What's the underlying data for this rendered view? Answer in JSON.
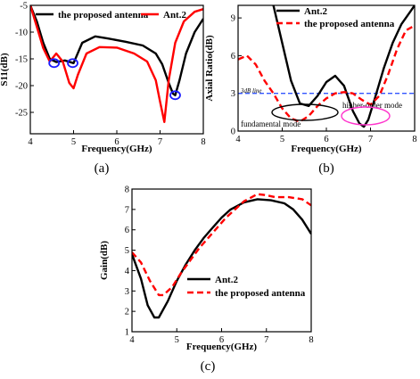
{
  "chart_data": [
    {
      "type": "line",
      "caption": "(a)",
      "xlabel": "Frequency(GHz)",
      "ylabel": "S11(dB)",
      "xlim": [
        4,
        8
      ],
      "ylim": [
        -29,
        -5
      ],
      "xticks": [
        4,
        5,
        6,
        7,
        8
      ],
      "yticks": [
        -5,
        -10,
        -15,
        -20,
        -25
      ],
      "legend_position": "top",
      "series": [
        {
          "name": "the proposed antenna",
          "color": "#000000",
          "style": "solid",
          "x": [
            4.0,
            4.15,
            4.3,
            4.45,
            4.6,
            4.8,
            5.0,
            5.2,
            5.5,
            5.8,
            6.2,
            6.6,
            6.9,
            7.05,
            7.2,
            7.3,
            7.35,
            7.45,
            7.6,
            7.8,
            8.0
          ],
          "y": [
            -5,
            -8,
            -12,
            -15,
            -15.6,
            -15.3,
            -15.8,
            -12,
            -10.8,
            -11.2,
            -11.8,
            -12.5,
            -14,
            -16,
            -19.5,
            -21.5,
            -21.8,
            -19,
            -14,
            -10,
            -7.5
          ]
        },
        {
          "name": "Ant.2",
          "color": "#ff0000",
          "style": "solid",
          "x": [
            4.0,
            4.15,
            4.3,
            4.45,
            4.6,
            4.75,
            4.9,
            5.0,
            5.1,
            5.3,
            5.6,
            6.0,
            6.4,
            6.7,
            6.9,
            7.0,
            7.1,
            7.2,
            7.35,
            7.55,
            7.8,
            8.0
          ],
          "y": [
            -5,
            -9,
            -13,
            -15.5,
            -14,
            -15.5,
            -19.5,
            -20.5,
            -18,
            -14,
            -12.8,
            -12.9,
            -14,
            -15.5,
            -19,
            -23,
            -26.8,
            -19,
            -12,
            -8,
            -6.2,
            -5.7
          ]
        }
      ],
      "markers": [
        {
          "x": 4.55,
          "y": -15.8
        },
        {
          "x": 4.98,
          "y": -15.8
        },
        {
          "x": 7.35,
          "y": -21.8
        }
      ]
    },
    {
      "type": "line",
      "caption": "(b)",
      "xlabel": "Frequency(GHz)",
      "ylabel": "Axial Ratio(dB)",
      "xlim": [
        4,
        8
      ],
      "ylim": [
        0,
        10
      ],
      "xticks": [
        4,
        5,
        6,
        7,
        8
      ],
      "yticks": [
        0,
        3,
        6,
        9
      ],
      "legend_position": "top",
      "annotations": [
        "3dB line",
        "fundamental mode",
        "higher-order mode"
      ],
      "reference_line": {
        "y": 3,
        "color": "#3355ff",
        "style": "dashed"
      },
      "series": [
        {
          "name": "Ant.2",
          "color": "#000000",
          "style": "solid",
          "x": [
            4.8,
            5.0,
            5.2,
            5.4,
            5.6,
            5.8,
            6.0,
            6.2,
            6.4,
            6.6,
            6.75,
            6.85,
            6.95,
            7.1,
            7.3,
            7.5,
            7.7,
            7.9,
            8.0
          ],
          "y": [
            10,
            7,
            4,
            2.2,
            2.0,
            2.8,
            3.9,
            4.4,
            3.6,
            1.6,
            0.6,
            0.35,
            0.9,
            2.6,
            5,
            7,
            8.5,
            9.5,
            10
          ]
        },
        {
          "name": "the proposed antenna",
          "color": "#ff0000",
          "style": "dashed",
          "x": [
            4.0,
            4.2,
            4.4,
            4.6,
            4.8,
            5.0,
            5.2,
            5.4,
            5.6,
            5.8,
            6.0,
            6.2,
            6.4,
            6.6,
            6.8,
            7.0,
            7.2,
            7.4,
            7.6,
            7.8,
            8.0
          ],
          "y": [
            5.7,
            6.0,
            5.3,
            4.0,
            3.0,
            1.8,
            1.0,
            0.75,
            1.2,
            2.0,
            2.6,
            3.0,
            3.1,
            3.0,
            2.5,
            2.1,
            2.8,
            4.5,
            6.5,
            8.0,
            8.4
          ]
        }
      ]
    },
    {
      "type": "line",
      "caption": "(c)",
      "xlabel": "Frequency(GHz)",
      "ylabel": "Gain(dB)",
      "xlim": [
        4,
        8
      ],
      "ylim": [
        1,
        8
      ],
      "xticks": [
        4,
        5,
        6,
        7,
        8
      ],
      "yticks": [
        1,
        2,
        3,
        4,
        5,
        6,
        7,
        8
      ],
      "legend_position": "bottom-right",
      "series": [
        {
          "name": "Ant.2",
          "color": "#000000",
          "style": "solid",
          "x": [
            4.0,
            4.2,
            4.35,
            4.5,
            4.6,
            4.8,
            5.0,
            5.2,
            5.4,
            5.6,
            5.8,
            6.0,
            6.2,
            6.5,
            6.8,
            7.1,
            7.4,
            7.6,
            7.8,
            8.0
          ],
          "y": [
            4.8,
            3.6,
            2.3,
            1.7,
            1.7,
            2.5,
            3.5,
            4.3,
            5.0,
            5.6,
            6.1,
            6.6,
            7.0,
            7.35,
            7.5,
            7.45,
            7.3,
            7.0,
            6.5,
            5.8
          ]
        },
        {
          "name": "the proposed antenna",
          "color": "#ff0000",
          "style": "dashed",
          "x": [
            4.0,
            4.2,
            4.4,
            4.6,
            4.7,
            4.9,
            5.1,
            5.3,
            5.5,
            5.7,
            5.9,
            6.1,
            6.3,
            6.5,
            6.8,
            7.0,
            7.2,
            7.5,
            7.8,
            8.0
          ],
          "y": [
            4.9,
            4.4,
            3.5,
            2.8,
            2.8,
            3.2,
            3.9,
            4.5,
            5.1,
            5.6,
            6.1,
            6.6,
            7.0,
            7.4,
            7.75,
            7.7,
            7.6,
            7.6,
            7.5,
            7.2
          ]
        }
      ]
    }
  ]
}
